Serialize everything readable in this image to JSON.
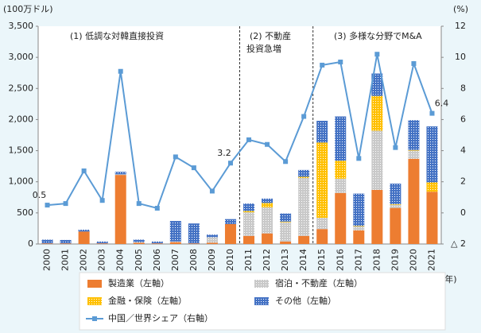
{
  "chart_data": {
    "type": "stacked-bar-line",
    "y_unit": "(100万ドル)",
    "y2_unit": "(%)",
    "x_unit": "(年)",
    "annotations": [
      "(1) 低調な対韓直接投資",
      "(2) 不動産",
      "投資急増",
      "(3) 多様な分野でM&A"
    ],
    "categories": [
      "2000",
      "2001",
      "2002",
      "2003",
      "2004",
      "2005",
      "2006",
      "2007",
      "2008",
      "2009",
      "2010",
      "2011",
      "2012",
      "2013",
      "2014",
      "2015",
      "2016",
      "2017",
      "2018",
      "2019",
      "2020",
      "2021"
    ],
    "ylim": [
      0,
      3500
    ],
    "yticks": [
      0,
      {
        "value": 500,
        "label": "500"
      },
      {
        "value": 1000,
        "label": "1,000"
      },
      {
        "value": 1500,
        "label": "1,500"
      },
      {
        "value": 2000,
        "label": "2,000"
      },
      {
        "value": 2500,
        "label": "2,500"
      },
      {
        "value": 3000,
        "label": "3,000"
      },
      {
        "value": 3500,
        "label": "3,500"
      }
    ],
    "y2lim": [
      -2,
      12
    ],
    "y2ticks": [
      {
        "value": -2,
        "label": "△ 2"
      },
      0,
      2,
      4,
      6,
      8,
      10,
      12
    ],
    "series": [
      {
        "name": "製造業（左軸）",
        "color": "#ed7d31",
        "pattern": "solid",
        "values": [
          10,
          10,
          200,
          10,
          1110,
          20,
          10,
          30,
          10,
          20,
          320,
          130,
          170,
          40,
          130,
          240,
          820,
          220,
          870,
          580,
          1370,
          840
        ]
      },
      {
        "name": "宿泊・不動産（左軸）",
        "color": "#c9c9c9",
        "pattern": "dots",
        "values": [
          0,
          0,
          0,
          0,
          10,
          10,
          0,
          10,
          0,
          90,
          0,
          380,
          420,
          310,
          930,
          180,
          230,
          60,
          950,
          50,
          130,
          0
        ]
      },
      {
        "name": "金融・保険（左軸）",
        "color": "#ffc000",
        "pattern": "dots",
        "values": [
          0,
          0,
          0,
          0,
          0,
          0,
          0,
          0,
          0,
          0,
          0,
          20,
          70,
          10,
          20,
          1210,
          290,
          10,
          560,
          10,
          10,
          150
        ]
      },
      {
        "name": "その他（左軸）",
        "color": "#4472c4",
        "pattern": "dots",
        "values": [
          60,
          55,
          30,
          30,
          40,
          40,
          30,
          330,
          320,
          40,
          80,
          120,
          70,
          130,
          110,
          350,
          710,
          520,
          360,
          330,
          480,
          900
        ]
      },
      {
        "name": "中国／世界シェア（右軸）",
        "color": "#5b9bd5",
        "axis": "y2",
        "kind": "line",
        "values": [
          0.5,
          0.6,
          2.7,
          0.8,
          9.1,
          0.6,
          0.3,
          3.6,
          2.9,
          1.4,
          3.2,
          4.7,
          4.4,
          3.3,
          6.2,
          9.5,
          9.7,
          3.5,
          10.2,
          4.2,
          9.6,
          6.4
        ],
        "value_labels": [
          "0.5",
          null,
          null,
          null,
          null,
          null,
          null,
          null,
          null,
          null,
          "3.2",
          null,
          null,
          null,
          null,
          null,
          null,
          null,
          null,
          null,
          null,
          "6.4"
        ]
      }
    ]
  }
}
